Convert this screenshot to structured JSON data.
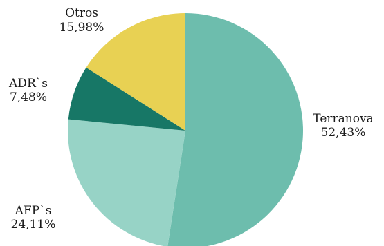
{
  "chart_data": {
    "type": "pie",
    "title": "",
    "legend": "none",
    "slices": [
      {
        "label": "Terranova",
        "value_label": "52,43%",
        "value": 52.43,
        "color": "#6dbdad"
      },
      {
        "label": "AFP`s",
        "value_label": "24,11%",
        "value": 24.11,
        "color": "#97d3c6"
      },
      {
        "label": "ADR`s",
        "value_label": "7,48%",
        "value": 7.48,
        "color": "#177766"
      },
      {
        "label": "Otros",
        "value_label": "15,98%",
        "value": 15.98,
        "color": "#e8d153"
      }
    ]
  }
}
